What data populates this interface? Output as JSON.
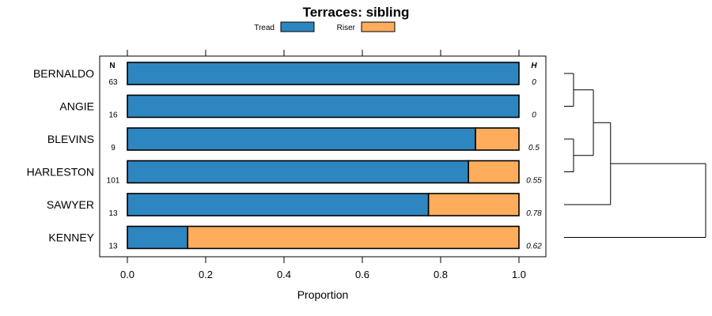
{
  "chart_data": {
    "type": "bar",
    "orientation": "horizontal",
    "stacked": true,
    "title": "Terraces: sibling",
    "xlabel": "Proportion",
    "ylabel": "",
    "xlim": [
      0,
      1
    ],
    "xticks": [
      "0.0",
      "0.2",
      "0.4",
      "0.6",
      "0.8",
      "1.0"
    ],
    "legend_position": "top",
    "categories": [
      "BERNALDO",
      "ANGIE",
      "BLEVINS",
      "HARLESTON",
      "SAWYER",
      "KENNEY"
    ],
    "n_header": "N",
    "h_header": "H",
    "n_values": [
      "63",
      "16",
      "9",
      "101",
      "13",
      "13"
    ],
    "h_values": [
      "0",
      "0",
      "0.5",
      "0.55",
      "0.78",
      "0.62"
    ],
    "series": [
      {
        "name": "Tread",
        "color": "#2e86c1",
        "values": [
          1.0,
          1.0,
          0.889,
          0.871,
          0.769,
          0.154
        ]
      },
      {
        "name": "Riser",
        "color": "#ffad5c",
        "values": [
          0.0,
          0.0,
          0.111,
          0.129,
          0.231,
          0.846
        ]
      }
    ],
    "dendrogram": {
      "order": [
        "BERNALDO",
        "ANGIE",
        "BLEVINS",
        "HARLESTON",
        "SAWYER",
        "KENNEY"
      ],
      "merges": [
        {
          "a": "BERNALDO",
          "b": "ANGIE",
          "height": 0.0
        },
        {
          "a": "BLEVINS",
          "b": "HARLESTON",
          "height": 0.0
        },
        {
          "a": "BERNALDO+ANGIE",
          "b": "BLEVINS+HARLESTON",
          "height": 0.15
        },
        {
          "a": "BERNALDO+ANGIE+BLEVINS+HARLESTON",
          "b": "SAWYER",
          "height": 0.28
        },
        {
          "a": "BERNALDO+ANGIE+BLEVINS+HARLESTON+SAWYER",
          "b": "KENNEY",
          "height": 1.0
        }
      ]
    }
  }
}
